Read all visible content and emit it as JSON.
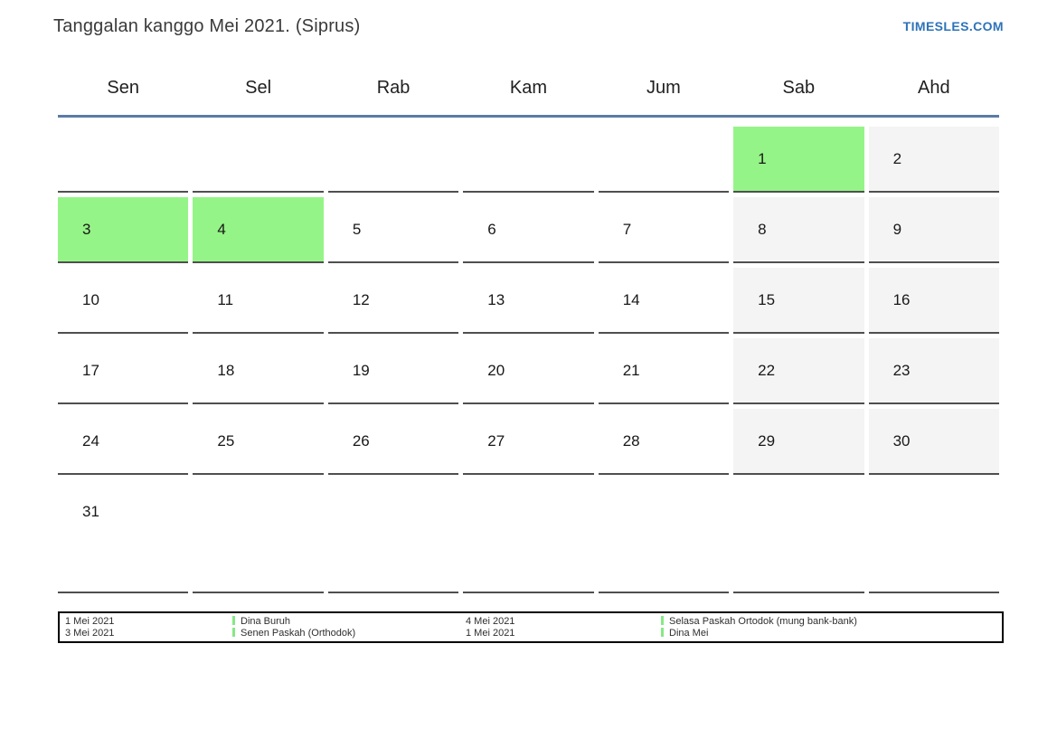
{
  "header": {
    "title": "Tanggalan kanggo Mei 2021. (Siprus)",
    "site_link": "TIMESLES.COM"
  },
  "calendar": {
    "day_headers": [
      "Sen",
      "Sel",
      "Rab",
      "Kam",
      "Jum",
      "Sab",
      "Ahd"
    ],
    "weeks": [
      [
        {
          "day": "",
          "type": "empty"
        },
        {
          "day": "",
          "type": "empty"
        },
        {
          "day": "",
          "type": "empty"
        },
        {
          "day": "",
          "type": "empty"
        },
        {
          "day": "",
          "type": "empty"
        },
        {
          "day": "1",
          "type": "holiday"
        },
        {
          "day": "2",
          "type": "weekend"
        }
      ],
      [
        {
          "day": "3",
          "type": "holiday"
        },
        {
          "day": "4",
          "type": "holiday"
        },
        {
          "day": "5",
          "type": "normal"
        },
        {
          "day": "6",
          "type": "normal"
        },
        {
          "day": "7",
          "type": "normal"
        },
        {
          "day": "8",
          "type": "weekend"
        },
        {
          "day": "9",
          "type": "weekend"
        }
      ],
      [
        {
          "day": "10",
          "type": "normal"
        },
        {
          "day": "11",
          "type": "normal"
        },
        {
          "day": "12",
          "type": "normal"
        },
        {
          "day": "13",
          "type": "normal"
        },
        {
          "day": "14",
          "type": "normal"
        },
        {
          "day": "15",
          "type": "weekend"
        },
        {
          "day": "16",
          "type": "weekend"
        }
      ],
      [
        {
          "day": "17",
          "type": "normal"
        },
        {
          "day": "18",
          "type": "normal"
        },
        {
          "day": "19",
          "type": "normal"
        },
        {
          "day": "20",
          "type": "normal"
        },
        {
          "day": "21",
          "type": "normal"
        },
        {
          "day": "22",
          "type": "weekend"
        },
        {
          "day": "23",
          "type": "weekend"
        }
      ],
      [
        {
          "day": "24",
          "type": "normal"
        },
        {
          "day": "25",
          "type": "normal"
        },
        {
          "day": "26",
          "type": "normal"
        },
        {
          "day": "27",
          "type": "normal"
        },
        {
          "day": "28",
          "type": "normal"
        },
        {
          "day": "29",
          "type": "weekend"
        },
        {
          "day": "30",
          "type": "weekend"
        }
      ],
      [
        {
          "day": "31",
          "type": "normal"
        },
        {
          "day": "",
          "type": "empty"
        },
        {
          "day": "",
          "type": "empty"
        },
        {
          "day": "",
          "type": "empty"
        },
        {
          "day": "",
          "type": "empty"
        },
        {
          "day": "",
          "type": "empty"
        },
        {
          "day": "",
          "type": "empty"
        }
      ]
    ]
  },
  "legend": {
    "groups": [
      {
        "dates": [
          "1 Mei 2021",
          "3 Mei 2021"
        ],
        "names": [
          "Dina Buruh",
          "Senen Paskah (Orthodok)"
        ]
      },
      {
        "dates": [
          "4 Mei 2021",
          "1 Mei 2021"
        ],
        "names": [
          "Selasa Paskah Ortodok (mung bank-bank)",
          "Dina Mei"
        ]
      }
    ]
  },
  "colors": {
    "holiday_bg": "#95f487",
    "weekend_bg": "#f4f4f4",
    "header_line": "#5a7ca3",
    "link": "#2d73b8",
    "legend_marker": "#86e886"
  }
}
